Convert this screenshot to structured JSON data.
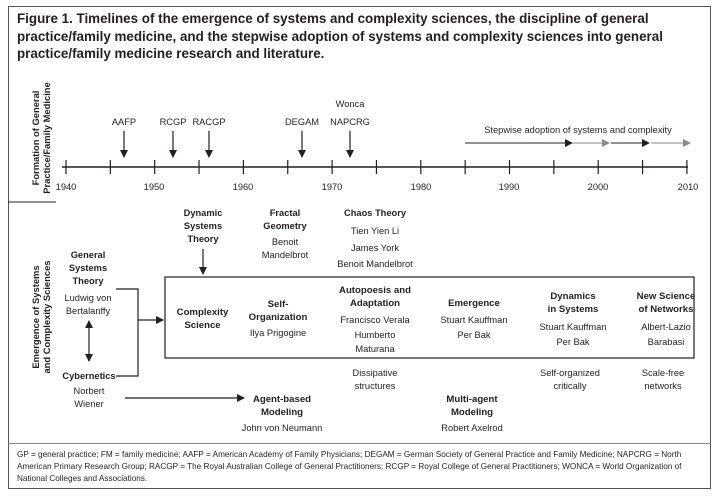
{
  "title": "Figure 1. Timelines of the emergence of systems and complexity sciences, the discipline of general practice/family medicine, and the stepwise adoption of systems and complexity sciences into general practice/family medicine research and literature.",
  "side_labels": {
    "top": [
      "Formation of General",
      "Practice/Family Medicine"
    ],
    "bottom": [
      "Emergence of Systems",
      "and Complexity Sciences"
    ]
  },
  "timeline": {
    "years": [
      "1940",
      "1950",
      "1960",
      "1970",
      "1980",
      "1990",
      "2000",
      "2010"
    ],
    "organizations": [
      "AAFP",
      "RCGP",
      "RACGP",
      "DEGAM",
      "Wonca",
      "NAPCRG"
    ],
    "adoption_label": "Stepwise adoption of systems and complexity"
  },
  "left_column": {
    "general_systems": {
      "title": [
        "General",
        "Systems",
        "Theory"
      ],
      "people": [
        "Ludwig von",
        "Bertalanffy"
      ]
    },
    "cybernetics": {
      "title": "Cybernetics",
      "people": [
        "Norbert",
        "Wiener"
      ]
    }
  },
  "above_box": {
    "dynamic": {
      "title": [
        "Dynamic",
        "Systems",
        "Theory"
      ]
    },
    "fractal": {
      "title": [
        "Fractal",
        "Geometry"
      ],
      "people": [
        "Benoit",
        "Mandelbrot"
      ]
    },
    "chaos": {
      "title": "Chaos Theory",
      "people": [
        "Tien Yien Li",
        "James York",
        "Benoit Mandelbrot"
      ]
    }
  },
  "box": {
    "complexity": {
      "title": [
        "Complexity",
        "Science"
      ]
    },
    "self_org": {
      "title": [
        "Self-",
        "Organization"
      ],
      "people": [
        "Ilya Prigogine"
      ]
    },
    "autopoiesis": {
      "title": [
        "Autopoesis and",
        "Adaptation"
      ],
      "people": [
        "Francisco Verala",
        "Humberto",
        "Maturana"
      ]
    },
    "emergence": {
      "title": "Emergence",
      "people": [
        "Stuart Kauffman",
        "Per Bak"
      ]
    },
    "dynamics": {
      "title": [
        "Dynamics",
        "in Systems"
      ],
      "people": [
        "Stuart Kauffman",
        "Per Bak"
      ]
    },
    "networks": {
      "title": [
        "New Science",
        "of Networks"
      ],
      "people": [
        "Albert-Lazio",
        "Barabasi"
      ]
    }
  },
  "below_box": {
    "dissipative": [
      "Dissipative",
      "structures"
    ],
    "self_organized": [
      "Self-organized",
      "critically"
    ],
    "scale_free": [
      "Scale-free",
      "networks"
    ]
  },
  "bottom": {
    "agent_based": {
      "title": [
        "Agent-based",
        "Modeling"
      ],
      "people": "John von Neumann"
    },
    "multi_agent": {
      "title": [
        "Multi-agent",
        "Modeling"
      ],
      "people": "Robert Axelrod"
    }
  },
  "footnote": "GP = general practice; FM = family medicine; AAFP = American Academy of Family Physicians; DEGAM = German Society of General Practice and Family Medicine; NAPCRG = North American Primary Research Group; RACGP = The Royal Australian College of General Practitioners; RCGP = Royal College of General Practitioners; WONCA = World Organization of National Colleges and Associations."
}
